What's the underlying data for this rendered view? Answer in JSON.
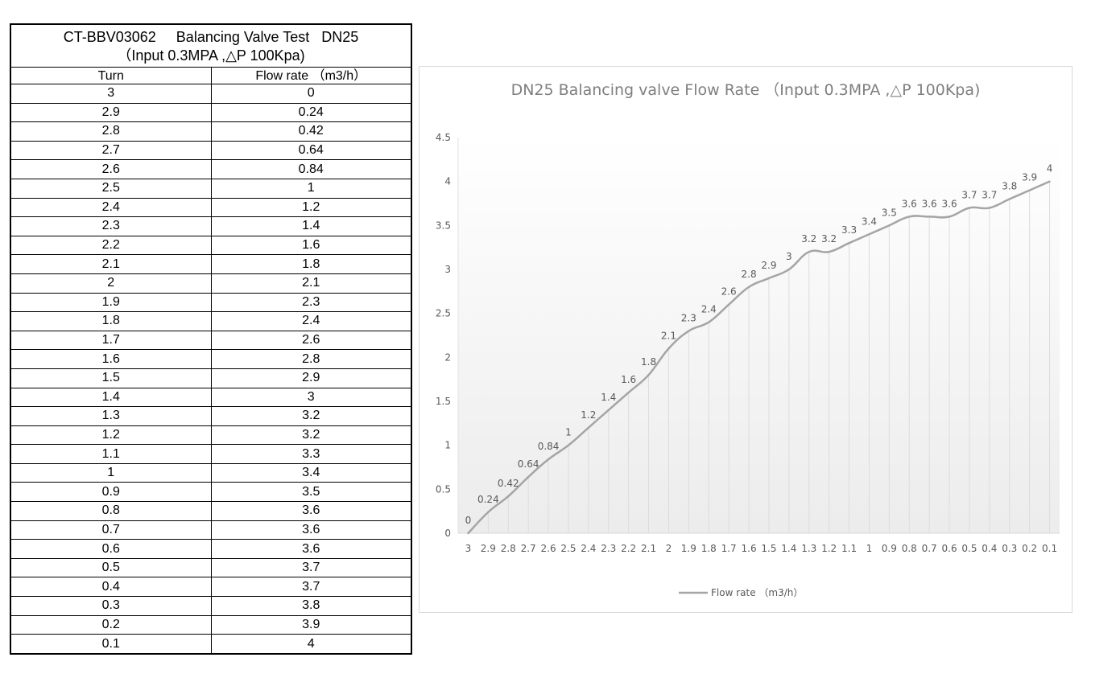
{
  "table": {
    "title_line1": "CT-BBV03062     Balancing Valve Test   DN25",
    "title_line2": "（Input 0.3MPA ,△P 100Kpa)",
    "headers": [
      "Turn",
      "Flow rate （m3/h）"
    ],
    "rows": [
      [
        "3",
        "0"
      ],
      [
        "2.9",
        "0.24"
      ],
      [
        "2.8",
        "0.42"
      ],
      [
        "2.7",
        "0.64"
      ],
      [
        "2.6",
        "0.84"
      ],
      [
        "2.5",
        "1"
      ],
      [
        "2.4",
        "1.2"
      ],
      [
        "2.3",
        "1.4"
      ],
      [
        "2.2",
        "1.6"
      ],
      [
        "2.1",
        "1.8"
      ],
      [
        "2",
        "2.1"
      ],
      [
        "1.9",
        "2.3"
      ],
      [
        "1.8",
        "2.4"
      ],
      [
        "1.7",
        "2.6"
      ],
      [
        "1.6",
        "2.8"
      ],
      [
        "1.5",
        "2.9"
      ],
      [
        "1.4",
        "3"
      ],
      [
        "1.3",
        "3.2"
      ],
      [
        "1.2",
        "3.2"
      ],
      [
        "1.1",
        "3.3"
      ],
      [
        "1",
        "3.4"
      ],
      [
        "0.9",
        "3.5"
      ],
      [
        "0.8",
        "3.6"
      ],
      [
        "0.7",
        "3.6"
      ],
      [
        "0.6",
        "3.6"
      ],
      [
        "0.5",
        "3.7"
      ],
      [
        "0.4",
        "3.7"
      ],
      [
        "0.3",
        "3.8"
      ],
      [
        "0.2",
        "3.9"
      ],
      [
        "0.1",
        "4"
      ]
    ]
  },
  "chart_data": {
    "type": "line",
    "title": "DN25 Balancing valve Flow Rate （Input 0.3MPA ,△P 100Kpa)",
    "xlabel": "",
    "ylabel": "",
    "categories": [
      "3",
      "2.9",
      "2.8",
      "2.7",
      "2.6",
      "2.5",
      "2.4",
      "2.3",
      "2.2",
      "2.1",
      "2",
      "1.9",
      "1.8",
      "1.7",
      "1.6",
      "1.5",
      "1.4",
      "1.3",
      "1.2",
      "1.1",
      "1",
      "0.9",
      "0.8",
      "0.7",
      "0.6",
      "0.5",
      "0.4",
      "0.3",
      "0.2",
      "0.1"
    ],
    "series": [
      {
        "name": "Flow rate （m3/h）",
        "values": [
          0,
          0.24,
          0.42,
          0.64,
          0.84,
          1,
          1.2,
          1.4,
          1.6,
          1.8,
          2.1,
          2.3,
          2.4,
          2.6,
          2.8,
          2.9,
          3,
          3.2,
          3.2,
          3.3,
          3.4,
          3.5,
          3.6,
          3.6,
          3.6,
          3.7,
          3.7,
          3.8,
          3.9,
          4
        ],
        "color": "#a5a5a5"
      }
    ],
    "yticks": [
      "0",
      "0.5",
      "1",
      "1.5",
      "2",
      "2.5",
      "3",
      "3.5",
      "4",
      "4.5"
    ],
    "ylim": [
      0,
      4.5
    ],
    "grid": "vertical lines",
    "data_labels": true,
    "legend_position": "bottom"
  }
}
